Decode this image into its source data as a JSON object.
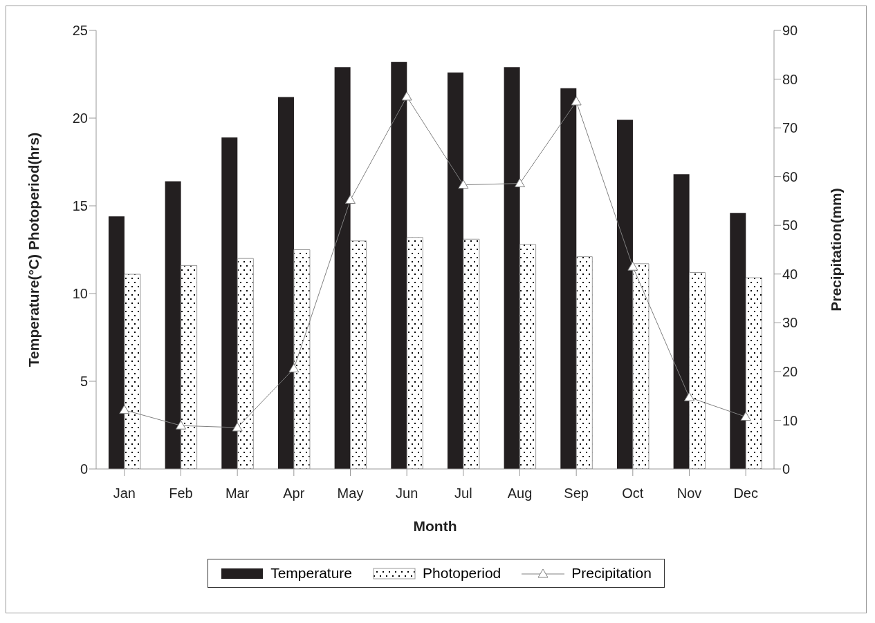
{
  "chart_data": {
    "type": "bar",
    "xlabel": "Month",
    "ylabel": "Temperature(°C) Photoperiod(hrs)",
    "y2label": "Precipitation(mm)",
    "categories": [
      "Jan",
      "Feb",
      "Mar",
      "Apr",
      "May",
      "Jun",
      "Jul",
      "Aug",
      "Sep",
      "Oct",
      "Nov",
      "Dec"
    ],
    "series": [
      {
        "name": "Temperature",
        "color": "#231f20",
        "values": [
          14.4,
          16.4,
          18.9,
          21.2,
          22.9,
          23.2,
          22.6,
          22.9,
          21.7,
          19.9,
          16.8,
          14.6
        ]
      },
      {
        "name": "Photoperiod",
        "color": "#9a9a9a",
        "values": [
          11.1,
          11.6,
          12.0,
          12.5,
          13.0,
          13.2,
          13.1,
          12.8,
          12.1,
          11.7,
          11.2,
          10.9
        ]
      },
      {
        "name": "Precipitation",
        "type": "line",
        "axis": "y2",
        "color": "#808080",
        "marker": "triangle",
        "values": [
          12.1,
          8.9,
          8.5,
          20.6,
          55.2,
          76.4,
          58.3,
          58.6,
          75.4,
          41.5,
          14.7,
          10.7
        ]
      }
    ],
    "ylim": [
      0,
      25
    ],
    "yticks": [
      0,
      5,
      10,
      15,
      20,
      25
    ],
    "y2lim": [
      0,
      90
    ],
    "y2ticks": [
      0,
      10,
      20,
      30,
      40,
      50,
      60,
      70,
      80,
      90
    ],
    "grid": false,
    "legend": "bottom"
  }
}
